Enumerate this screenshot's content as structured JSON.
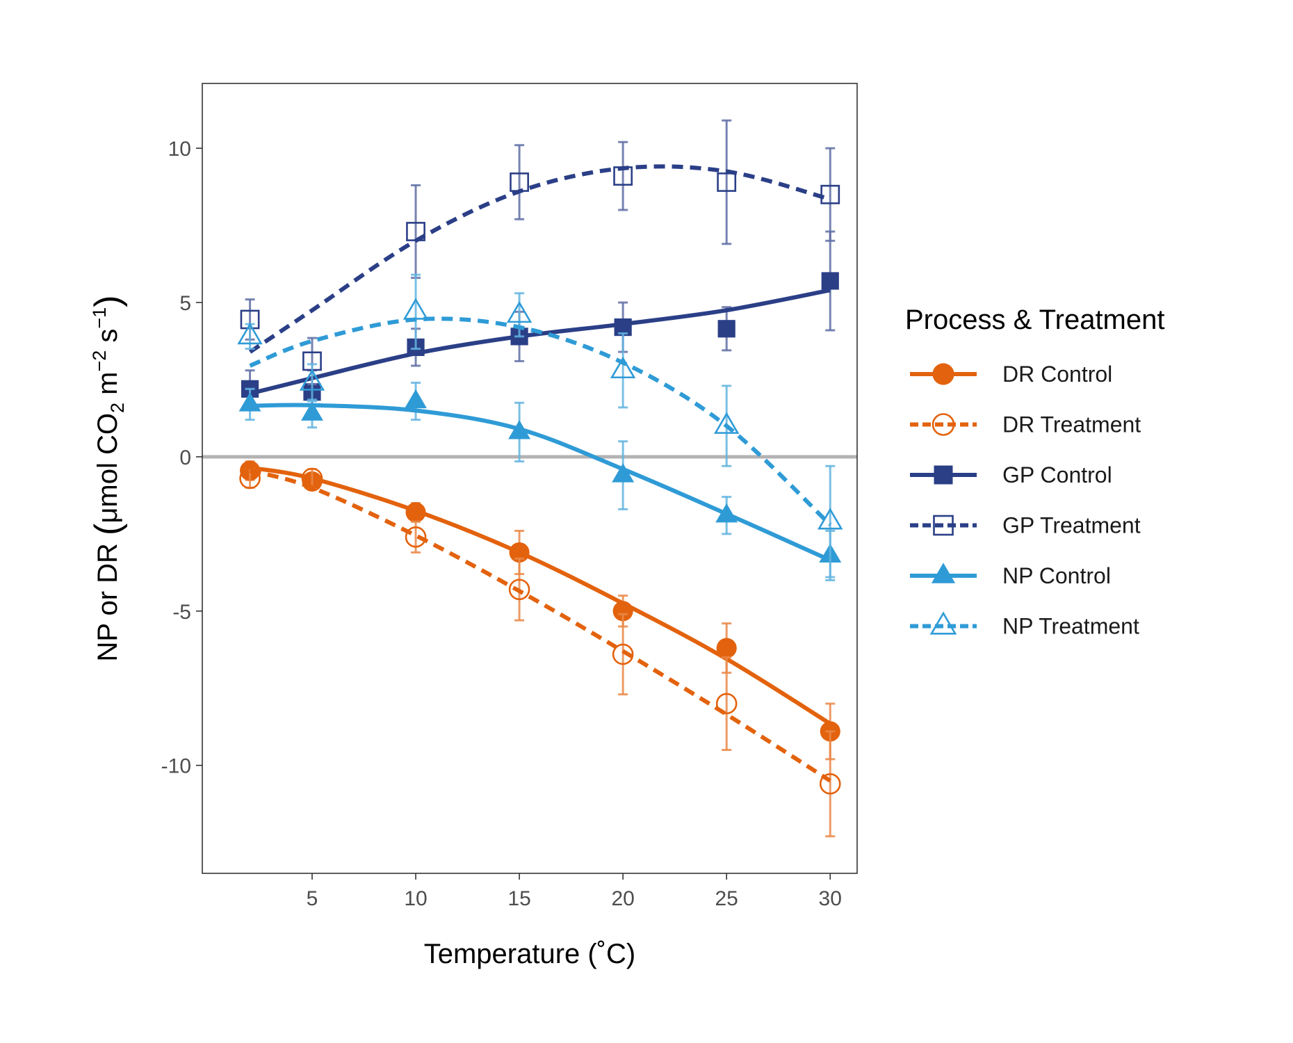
{
  "chart_data": {
    "type": "line",
    "xlabel": "Temperature (˚C)",
    "ylabel_parts": [
      "NP or DR ",
      "(",
      "μmol CO",
      "2",
      " m",
      "−2",
      " s",
      "−1",
      ")"
    ],
    "x_ticks": [
      5,
      10,
      15,
      20,
      25,
      30
    ],
    "x_tick_labels": [
      "5",
      "10",
      "15",
      "20",
      "25",
      "30"
    ],
    "y_ticks": [
      -10,
      -5,
      0,
      5,
      10
    ],
    "y_tick_labels": [
      "-10",
      "-5",
      "0",
      "5",
      "10"
    ],
    "xlim": [
      -0.3,
      31.3
    ],
    "ylim": [
      -13.5,
      12.1
    ],
    "grid": false,
    "reference_line": {
      "y": 0,
      "color": "#b3b3b3"
    },
    "legend": {
      "title": "Process & Treatment",
      "position": "right",
      "entries": [
        "DR Control",
        "DR Treatment",
        "GP Control",
        "GP Treatment",
        "NP Control",
        "NP Treatment"
      ]
    },
    "x": [
      2,
      5,
      10,
      15,
      20,
      25,
      30
    ],
    "series": [
      {
        "name": "DR Control",
        "color": "#e3620d",
        "line": "solid",
        "marker": "circle",
        "filled": true,
        "values": [
          -0.45,
          -0.8,
          -1.8,
          -3.1,
          -5.0,
          -6.2,
          -8.9
        ],
        "err": [
          0.3,
          0.25,
          0.3,
          0.7,
          0.5,
          0.8,
          0.9
        ],
        "fit": [
          -0.35,
          -0.7,
          -1.75,
          -3.1,
          -4.75,
          -6.55,
          -8.65
        ]
      },
      {
        "name": "DR Treatment",
        "color": "#e3620d",
        "line": "dashed",
        "marker": "circle",
        "filled": false,
        "values": [
          -0.7,
          -0.7,
          -2.6,
          -4.3,
          -6.4,
          -8.0,
          -10.6
        ],
        "err": [
          0.3,
          0.3,
          0.5,
          1.0,
          1.3,
          1.5,
          1.7
        ],
        "fit": [
          -0.45,
          -1.0,
          -2.55,
          -4.35,
          -6.3,
          -8.35,
          -10.5
        ]
      },
      {
        "name": "GP Control",
        "color": "#2b3f87",
        "line": "solid",
        "marker": "square",
        "filled": true,
        "values": [
          2.2,
          2.1,
          3.55,
          3.9,
          4.2,
          4.15,
          5.7
        ],
        "err": [
          0.6,
          0.7,
          0.6,
          0.8,
          0.8,
          0.7,
          1.6
        ],
        "fit": [
          2.05,
          2.55,
          3.35,
          3.9,
          4.3,
          4.75,
          5.4
        ]
      },
      {
        "name": "GP Treatment",
        "color": "#2b3f87",
        "line": "dashed",
        "marker": "square",
        "filled": false,
        "values": [
          4.45,
          3.1,
          7.3,
          8.9,
          9.1,
          8.9,
          8.5
        ],
        "err": [
          0.65,
          0.75,
          1.5,
          1.2,
          1.1,
          2.0,
          1.5
        ],
        "fit": [
          3.4,
          4.75,
          7.0,
          8.6,
          9.35,
          9.25,
          8.35
        ]
      },
      {
        "name": "NP Control",
        "color": "#2f9bd6",
        "line": "solid",
        "marker": "triangle",
        "filled": true,
        "values": [
          1.7,
          1.4,
          1.8,
          0.8,
          -0.6,
          -1.9,
          -3.2
        ],
        "err": [
          0.5,
          0.45,
          0.6,
          0.95,
          1.1,
          0.6,
          0.8
        ],
        "fit": [
          1.65,
          1.67,
          1.5,
          0.9,
          -0.4,
          -1.85,
          -3.35
        ]
      },
      {
        "name": "NP Treatment",
        "color": "#2f9bd6",
        "line": "dashed",
        "marker": "triangle",
        "filled": false,
        "values": [
          3.9,
          2.4,
          4.7,
          4.6,
          2.8,
          1.0,
          -2.1
        ],
        "err": [
          0.4,
          0.6,
          1.2,
          0.7,
          1.2,
          1.3,
          1.8
        ],
        "fit": [
          2.95,
          3.75,
          4.45,
          4.2,
          3.05,
          1.0,
          -2.2
        ]
      }
    ]
  }
}
